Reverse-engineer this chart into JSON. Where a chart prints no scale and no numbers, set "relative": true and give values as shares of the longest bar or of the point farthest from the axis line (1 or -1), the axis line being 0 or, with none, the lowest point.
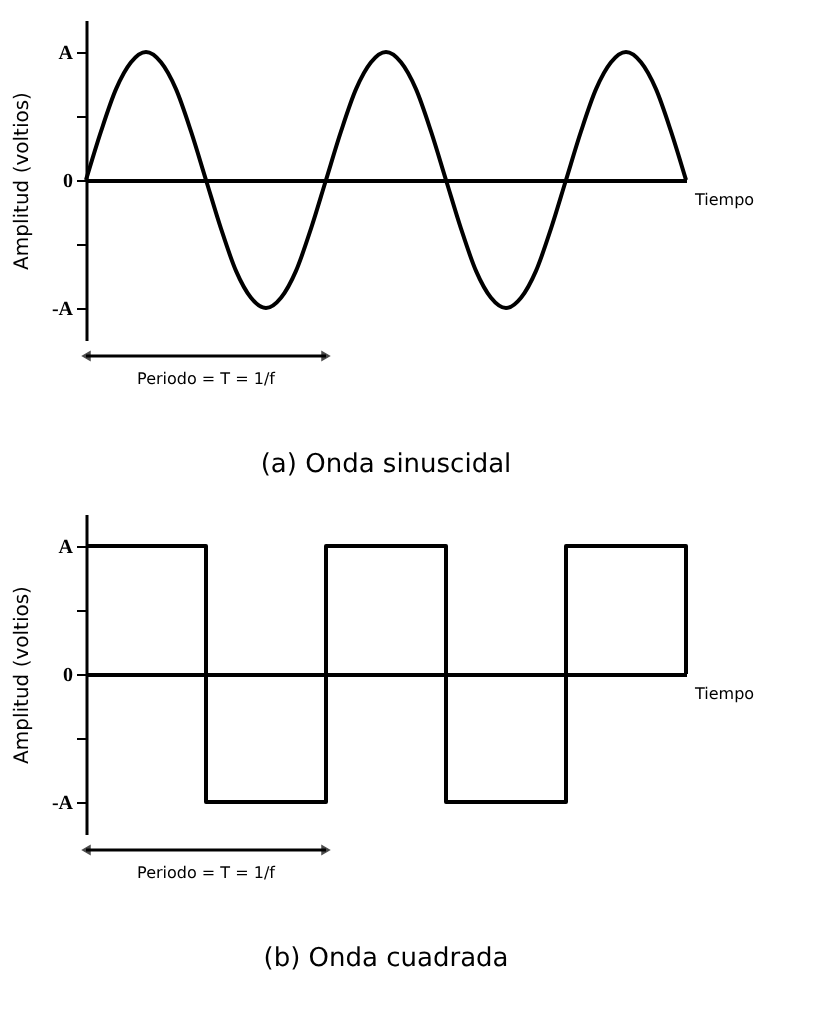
{
  "chart_data": [
    {
      "type": "line",
      "relative": true,
      "title": "(a) Onda sinuscidal",
      "xlabel": "Tiempo",
      "ylabel": "Amplitud (voltios)",
      "tick_labels": false,
      "categories": [
        null,
        null,
        null,
        null,
        null,
        null,
        null,
        null,
        null,
        null,
        null,
        null,
        null,
        null,
        null,
        null,
        null,
        null,
        null,
        null,
        null,
        null,
        null,
        null,
        null,
        null,
        null,
        null,
        null,
        null,
        null,
        null,
        null,
        null,
        null,
        null,
        null,
        null,
        null,
        null,
        null
      ],
      "series": [
        {
          "color": "#000000",
          "values": [
            0,
            0.38,
            0.71,
            0.92,
            1,
            0.92,
            0.71,
            0.38,
            0,
            -0.38,
            -0.71,
            -0.92,
            -1,
            -0.92,
            -0.71,
            -0.38,
            0,
            0.38,
            0.71,
            0.92,
            1,
            0.92,
            0.71,
            0.38,
            0,
            -0.38,
            -0.71,
            -0.92,
            -1,
            -0.92,
            -0.71,
            -0.38,
            0,
            0.38,
            0.71,
            0.92,
            1,
            0.92,
            0.71,
            0.38,
            0
          ]
        }
      ],
      "annotations": [
        "A",
        "0",
        "-A",
        "Periodo =  T = 1/f"
      ]
    },
    {
      "type": "step",
      "relative": true,
      "title": "(b) Onda cuadrada",
      "xlabel": "Tiempo",
      "ylabel": "Amplitud (voltios)",
      "tick_labels": false,
      "categories": [
        null,
        null,
        null,
        null,
        null,
        null
      ],
      "series": [
        {
          "color": "#000000",
          "values": [
            1,
            -1,
            1,
            -1,
            1,
            0
          ]
        }
      ],
      "annotations": [
        "A",
        "0",
        "-A",
        "Periodo =  T = 1/f"
      ]
    }
  ]
}
